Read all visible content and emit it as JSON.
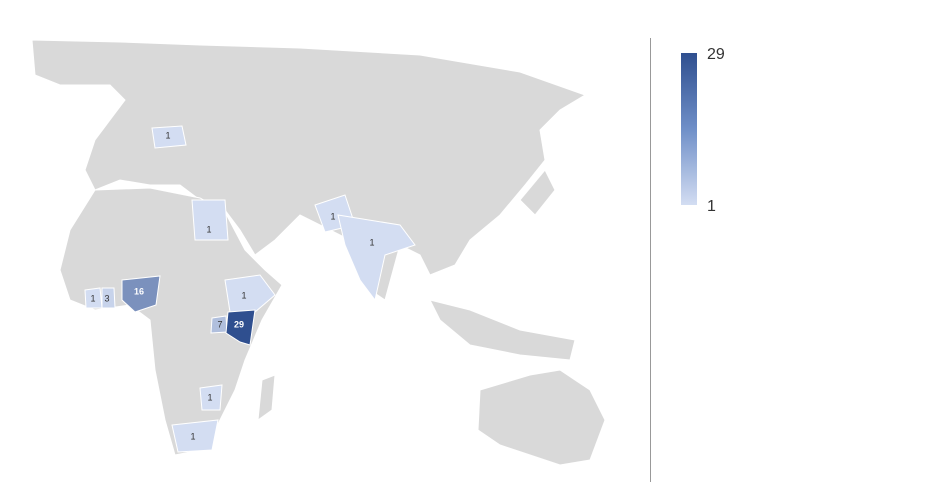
{
  "chart_data": {
    "type": "filled-map",
    "values": [
      1,
      1,
      1,
      1,
      1,
      3,
      16,
      1,
      7,
      29,
      1,
      1
    ],
    "legend": {
      "max_label": "29",
      "min_label": "1",
      "placement": "right"
    },
    "colors": {
      "min": "#d3ddf2",
      "max": "#2f4f8f",
      "no_data": "#d9d9d9"
    }
  }
}
